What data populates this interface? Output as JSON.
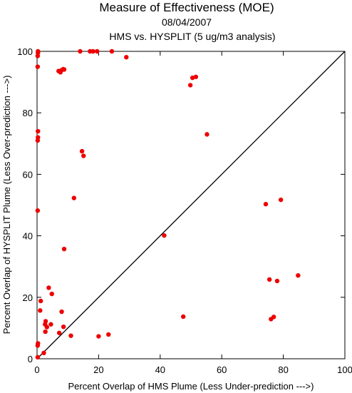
{
  "chart_data": {
    "type": "scatter",
    "title": "Measure of Effectiveness (MOE)",
    "subtitle_date": "08/04/2007",
    "subtitle": "HMS vs. HYSPLIT  (5 ug/m3 analysis)",
    "xlabel": "Percent Overlap of HMS Plume (Less Under-prediction --->)",
    "ylabel": "Percent Overlap of HYSPLIT Plume (Less Over-prediction --->)",
    "xlim": [
      0,
      100
    ],
    "ylim": [
      0,
      100
    ],
    "xticks": [
      "0",
      "20",
      "40",
      "60",
      "80",
      "100"
    ],
    "yticks": [
      "0",
      "20",
      "40",
      "60",
      "80",
      "100"
    ],
    "grid": false,
    "reference_line": "diagonal y = x",
    "marker_color": "#ee0000",
    "points": [
      [
        0.3,
        100
      ],
      [
        0.3,
        99.5
      ],
      [
        0.2,
        98.5
      ],
      [
        0.2,
        95
      ],
      [
        0.3,
        74
      ],
      [
        0.3,
        72
      ],
      [
        0.2,
        71
      ],
      [
        0.2,
        48.2
      ],
      [
        0.3,
        5
      ],
      [
        0.2,
        4.3
      ],
      [
        0.2,
        0.5
      ],
      [
        1.2,
        18.8
      ],
      [
        1,
        15.7
      ],
      [
        2.2,
        1.9
      ],
      [
        2.6,
        11.2
      ],
      [
        2.8,
        12.2
      ],
      [
        2.7,
        8.8
      ],
      [
        3.2,
        10.3
      ],
      [
        3.8,
        23.1
      ],
      [
        4.8,
        21.1
      ],
      [
        4.5,
        11.2
      ],
      [
        7,
        93.6
      ],
      [
        7.6,
        93.2
      ],
      [
        8,
        93.9
      ],
      [
        8.5,
        94.2
      ],
      [
        8.8,
        94.1
      ],
      [
        7.2,
        8.4
      ],
      [
        8,
        15.3
      ],
      [
        8.6,
        10.4
      ],
      [
        8.8,
        35.7
      ],
      [
        12,
        52.3
      ],
      [
        11,
        7.5
      ],
      [
        14,
        100
      ],
      [
        14.6,
        67.5
      ],
      [
        15.1,
        66
      ],
      [
        17.2,
        100
      ],
      [
        18.2,
        100
      ],
      [
        19.5,
        100
      ],
      [
        20,
        7.3
      ],
      [
        23.2,
        7.9
      ],
      [
        24.3,
        100
      ],
      [
        29,
        98.1
      ],
      [
        41.3,
        40.1
      ],
      [
        47.5,
        13.7
      ],
      [
        49.8,
        89
      ],
      [
        50.5,
        91.4
      ],
      [
        51.6,
        91.7
      ],
      [
        55.2,
        73
      ],
      [
        74.3,
        50.3
      ],
      [
        75.5,
        25.8
      ],
      [
        76,
        12.9
      ],
      [
        76.9,
        13.6
      ],
      [
        78,
        25.3
      ],
      [
        79.2,
        51.7
      ],
      [
        84.8,
        27.1
      ]
    ]
  }
}
